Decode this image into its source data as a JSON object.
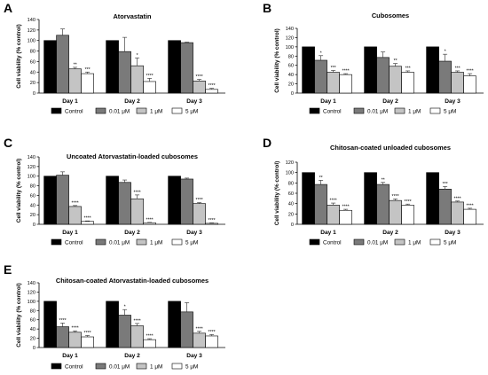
{
  "colors": {
    "control": "#000000",
    "c001": "#7a7a7a",
    "c1": "#c4c4c4",
    "c5": "#ffffff",
    "errorbar": "#444444"
  },
  "chart_data": [
    {
      "type": "bar",
      "letter": "A",
      "title": "Atorvastatin",
      "ylabel": "Cell viability (% control)",
      "ylim": [
        0,
        140
      ],
      "yticks": [
        0,
        20,
        40,
        60,
        80,
        100,
        120,
        140
      ],
      "categories": [
        "Day 1",
        "Day 2",
        "Day 3"
      ],
      "series": [
        {
          "name": "Control",
          "values": [
            100,
            100,
            100
          ],
          "errors": [
            0,
            0,
            0
          ],
          "sig": [
            "",
            "",
            ""
          ]
        },
        {
          "name": "0.01 μM",
          "values": [
            110,
            79,
            96
          ],
          "errors": [
            12,
            27,
            1
          ],
          "sig": [
            "",
            "",
            ""
          ]
        },
        {
          "name": "1 μM",
          "values": [
            46,
            52,
            23
          ],
          "errors": [
            3,
            15,
            3
          ],
          "sig": [
            "**",
            "*",
            "****"
          ]
        },
        {
          "name": "5 μM",
          "values": [
            37,
            22,
            7
          ],
          "errors": [
            3,
            6,
            2
          ],
          "sig": [
            "***",
            "****",
            "****"
          ]
        }
      ]
    },
    {
      "type": "bar",
      "letter": "B",
      "title": "Cubosomes",
      "ylabel": "Cell viability (% control)",
      "ylim": [
        0,
        140
      ],
      "yticks": [
        0,
        20,
        40,
        60,
        80,
        100,
        120,
        140
      ],
      "categories": [
        "Day 1",
        "Day 2",
        "Day 3"
      ],
      "series": [
        {
          "name": "Control",
          "values": [
            100,
            100,
            100
          ],
          "errors": [
            0,
            0,
            0
          ],
          "sig": [
            "",
            "",
            ""
          ]
        },
        {
          "name": "0.01 μM",
          "values": [
            71,
            77,
            69
          ],
          "errors": [
            10,
            12,
            15
          ],
          "sig": [
            "*",
            "",
            "*"
          ]
        },
        {
          "name": "1 μM",
          "values": [
            45,
            58,
            45
          ],
          "errors": [
            4,
            6,
            3
          ],
          "sig": [
            "***",
            "**",
            "***"
          ]
        },
        {
          "name": "5 μM",
          "values": [
            40,
            45,
            37
          ],
          "errors": [
            2,
            3,
            5
          ],
          "sig": [
            "****",
            "***",
            "****"
          ]
        }
      ]
    },
    {
      "type": "bar",
      "letter": "C",
      "title": "Uncoated Atorvastatin-loaded cubosomes",
      "ylabel": "Cell viability (% control)",
      "ylim": [
        0,
        140
      ],
      "yticks": [
        0,
        20,
        40,
        60,
        80,
        100,
        120,
        140
      ],
      "categories": [
        "Day 1",
        "Day 2",
        "Day 3"
      ],
      "series": [
        {
          "name": "Control",
          "values": [
            100,
            100,
            100
          ],
          "errors": [
            0,
            0,
            0
          ],
          "sig": [
            "",
            "",
            ""
          ]
        },
        {
          "name": "0.01 μM",
          "values": [
            102,
            87,
            94
          ],
          "errors": [
            7,
            5,
            2
          ],
          "sig": [
            "",
            "",
            ""
          ]
        },
        {
          "name": "1 μM",
          "values": [
            37,
            53,
            43
          ],
          "errors": [
            2,
            8,
            2
          ],
          "sig": [
            "****",
            "****",
            "****"
          ]
        },
        {
          "name": "5 μM",
          "values": [
            6,
            3,
            2
          ],
          "errors": [
            1,
            1,
            1
          ],
          "sig": [
            "****",
            "****",
            "****"
          ]
        }
      ]
    },
    {
      "type": "bar",
      "letter": "D",
      "title": "Chitosan-coated unloaded cubosomes",
      "ylabel": "Cell viability (% control)",
      "ylim": [
        0,
        120
      ],
      "yticks": [
        0,
        20,
        40,
        60,
        80,
        100,
        120
      ],
      "categories": [
        "Day 1",
        "Day 2",
        "Day 3"
      ],
      "series": [
        {
          "name": "Control",
          "values": [
            100,
            100,
            100
          ],
          "errors": [
            0,
            0,
            0
          ],
          "sig": [
            "",
            "",
            ""
          ]
        },
        {
          "name": "0.01 μM",
          "values": [
            77,
            77,
            68
          ],
          "errors": [
            8,
            4,
            5
          ],
          "sig": [
            "**",
            "**",
            "***"
          ]
        },
        {
          "name": "1 μM",
          "values": [
            37,
            46,
            43
          ],
          "errors": [
            4,
            3,
            2
          ],
          "sig": [
            "****",
            "****",
            "****"
          ]
        },
        {
          "name": "5 μM",
          "values": [
            27,
            37,
            29
          ],
          "errors": [
            2,
            2,
            2
          ],
          "sig": [
            "****",
            "****",
            "****"
          ]
        }
      ]
    },
    {
      "type": "bar",
      "letter": "E",
      "title": "Chitosan-coated Atorvastatin-loaded cubosomes",
      "ylabel": "Cell viability (% control)",
      "ylim": [
        0,
        140
      ],
      "yticks": [
        0,
        20,
        40,
        60,
        80,
        100,
        120,
        140
      ],
      "categories": [
        "Day 1",
        "Day 2",
        "Day 3"
      ],
      "series": [
        {
          "name": "Control",
          "values": [
            100,
            100,
            100
          ],
          "errors": [
            0,
            0,
            0
          ],
          "sig": [
            "",
            "",
            ""
          ]
        },
        {
          "name": "0.01 μM",
          "values": [
            45,
            70,
            77
          ],
          "errors": [
            8,
            12,
            20
          ],
          "sig": [
            "****",
            "*",
            ""
          ]
        },
        {
          "name": "1 μM",
          "values": [
            33,
            47,
            31
          ],
          "errors": [
            3,
            5,
            4
          ],
          "sig": [
            "****",
            "****",
            "****"
          ]
        },
        {
          "name": "5 μM",
          "values": [
            23,
            17,
            25
          ],
          "errors": [
            3,
            2,
            3
          ],
          "sig": [
            "****",
            "****",
            "****"
          ]
        }
      ]
    }
  ]
}
